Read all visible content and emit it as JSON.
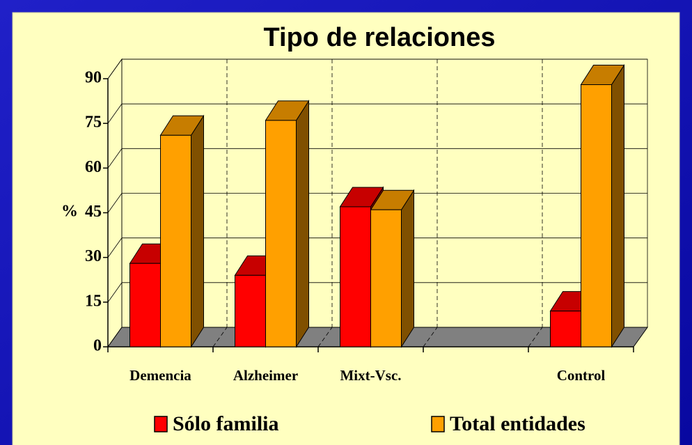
{
  "chart_data": {
    "type": "bar3d",
    "title": "Tipo de relaciones",
    "y_label": "%",
    "categories": [
      "Demencia",
      "Alzheimer",
      "Mixt-Vsc.",
      null,
      "Control"
    ],
    "series": [
      {
        "name": "Sólo familia",
        "color": "#ff0000",
        "values": [
          28,
          24,
          47,
          null,
          12
        ]
      },
      {
        "name": "Total entidades",
        "color": "#ffa000",
        "values": [
          71,
          76,
          46,
          null,
          88
        ]
      }
    ],
    "ylim": [
      0,
      90
    ],
    "yticks": [
      0,
      15,
      30,
      45,
      60,
      75,
      90
    ],
    "grid": true,
    "legend": "bottom"
  }
}
